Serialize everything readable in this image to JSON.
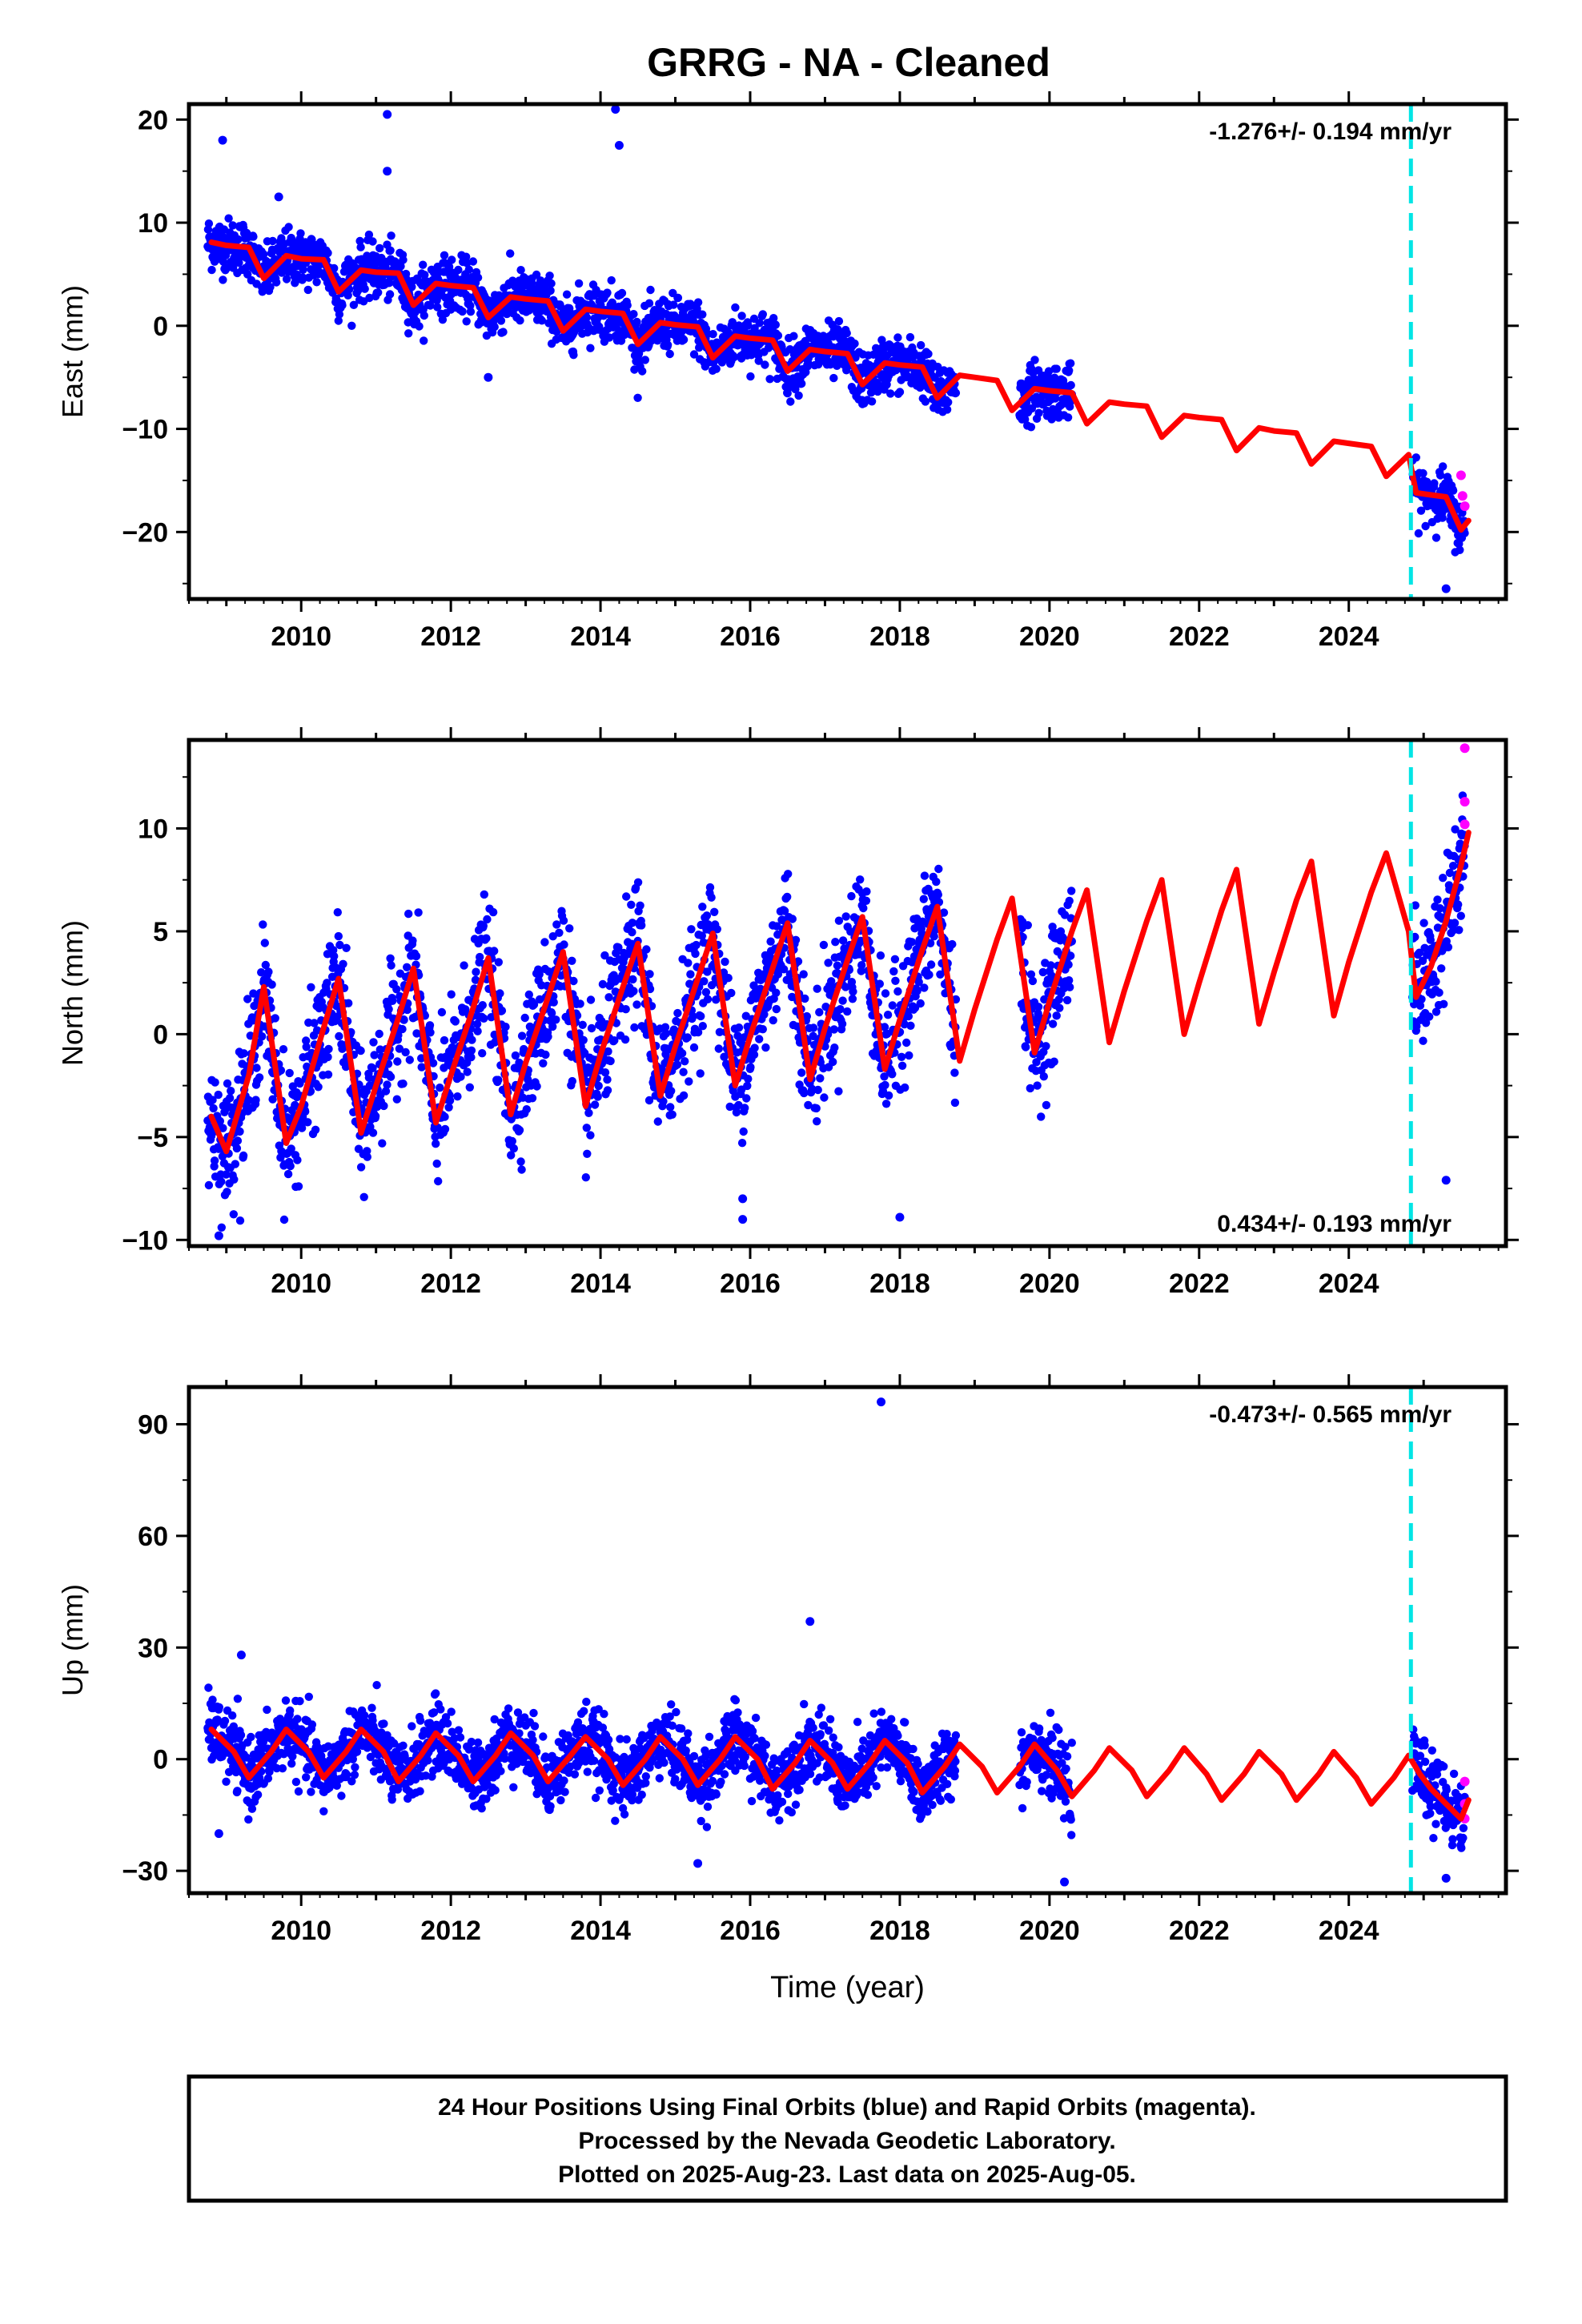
{
  "title": "GRRG  - NA - Cleaned",
  "colors": {
    "final_orbits": "#0000ff",
    "rapid_orbits": "#ff00ff",
    "model": "#ff0000",
    "offset_line": "#00e5e5",
    "frame": "#000000"
  },
  "footer": {
    "line1": "24 Hour Positions Using Final Orbits (blue) and Rapid Orbits (magenta).",
    "line2": "Processed by the Nevada Geodetic Laboratory.",
    "line3": "Plotted on 2025-Aug-23. Last data on 2025-Aug-05."
  },
  "chart_data": [
    {
      "type": "scatter",
      "component": "east",
      "ylabel": "East (mm)",
      "xlabel": "",
      "xlim": [
        2008.5,
        2026.1
      ],
      "ylim": [
        -26.5,
        21.5
      ],
      "xticks": [
        2010,
        2012,
        2014,
        2016,
        2018,
        2020,
        2022,
        2024
      ],
      "yticks": [
        -20,
        -10,
        0,
        10,
        20
      ],
      "rate_label": "-1.276+/- 0.194 mm/yr",
      "rate_position": "top-right",
      "offset_epoch": 2024.83,
      "grid": false,
      "model": {
        "x": [
          2008.8,
          2009.0,
          2009.3,
          2009.5,
          2009.8,
          2010.0,
          2010.3,
          2010.5,
          2010.8,
          2011.0,
          2011.3,
          2011.5,
          2011.8,
          2012.0,
          2012.3,
          2012.5,
          2012.8,
          2013.0,
          2013.3,
          2013.5,
          2013.8,
          2014.0,
          2014.3,
          2014.5,
          2014.8,
          2015.0,
          2015.3,
          2015.5,
          2015.8,
          2016.0,
          2016.3,
          2016.5,
          2016.8,
          2017.0,
          2017.3,
          2017.5,
          2017.8,
          2018.0,
          2018.3,
          2018.5,
          2018.8,
          2019.0,
          2019.3,
          2019.5,
          2019.8,
          2020.0,
          2020.3,
          2020.5,
          2020.8,
          2021.0,
          2021.3,
          2021.5,
          2021.8,
          2022.0,
          2022.3,
          2022.5,
          2022.8,
          2023.0,
          2023.3,
          2023.5,
          2023.8,
          2024.0,
          2024.3,
          2024.5,
          2024.8,
          2024.9,
          2025.1,
          2025.3,
          2025.5,
          2025.6
        ],
        "y": [
          8.1,
          7.8,
          7.6,
          4.6,
          6.8,
          6.5,
          6.4,
          3.3,
          5.4,
          5.2,
          5.1,
          2.0,
          4.1,
          3.9,
          3.7,
          0.8,
          2.8,
          2.6,
          2.4,
          -0.5,
          1.6,
          1.4,
          1.2,
          -1.8,
          0.3,
          0.1,
          -0.1,
          -3.1,
          -1.0,
          -1.2,
          -1.4,
          -4.4,
          -2.3,
          -2.5,
          -2.7,
          -5.7,
          -3.6,
          -3.8,
          -4.0,
          -7.0,
          -4.8,
          -5.0,
          -5.3,
          -8.2,
          -6.1,
          -6.3,
          -6.5,
          -9.5,
          -7.4,
          -7.6,
          -7.8,
          -10.8,
          -8.7,
          -8.9,
          -9.1,
          -12.1,
          -9.9,
          -10.2,
          -10.4,
          -13.4,
          -11.2,
          -11.4,
          -11.7,
          -14.6,
          -12.5,
          -16.2,
          -16.4,
          -16.6,
          -19.8,
          -18.9
        ]
      },
      "outliers": {
        "x": [
          2008.95,
          2009.7,
          2011.15,
          2011.15,
          2014.2,
          2014.25,
          2012.5,
          2025.3
        ],
        "y": [
          18.0,
          12.5,
          20.5,
          15.0,
          21.0,
          17.5,
          -5.0,
          -25.5
        ]
      },
      "rapid": {
        "x": [
          2025.5,
          2025.52,
          2025.55
        ],
        "y": [
          -14.5,
          -16.5,
          -17.5
        ]
      }
    },
    {
      "type": "scatter",
      "component": "north",
      "ylabel": "North (mm)",
      "xlabel": "",
      "xlim": [
        2008.5,
        2026.1
      ],
      "ylim": [
        -10.3,
        14.3
      ],
      "xticks": [
        2010,
        2012,
        2014,
        2016,
        2018,
        2020,
        2022,
        2024
      ],
      "yticks": [
        -10,
        -5,
        0,
        5,
        10
      ],
      "rate_label": "0.434+/- 0.193 mm/yr",
      "rate_position": "bottom-right",
      "offset_epoch": 2024.83,
      "grid": false,
      "model": {
        "x": [
          2008.8,
          2009.0,
          2009.3,
          2009.5,
          2009.8,
          2010.0,
          2010.3,
          2010.5,
          2010.8,
          2011.0,
          2011.3,
          2011.5,
          2011.8,
          2012.0,
          2012.3,
          2012.5,
          2012.8,
          2013.0,
          2013.3,
          2013.5,
          2013.8,
          2014.0,
          2014.3,
          2014.5,
          2014.8,
          2015.0,
          2015.3,
          2015.5,
          2015.8,
          2016.0,
          2016.3,
          2016.5,
          2016.8,
          2017.0,
          2017.3,
          2017.5,
          2017.8,
          2018.0,
          2018.3,
          2018.5,
          2018.8,
          2019.0,
          2019.3,
          2019.5,
          2019.8,
          2020.0,
          2020.3,
          2020.5,
          2020.8,
          2021.0,
          2021.3,
          2021.5,
          2021.8,
          2022.0,
          2022.3,
          2022.5,
          2022.8,
          2023.0,
          2023.3,
          2023.5,
          2023.8,
          2024.0,
          2024.3,
          2024.5,
          2024.8,
          2024.9,
          2025.1,
          2025.3,
          2025.5,
          2025.6
        ],
        "y": [
          -4.0,
          -5.7,
          -2.0,
          2.3,
          -5.3,
          -3.5,
          0.3,
          2.7,
          -4.8,
          -2.5,
          0.8,
          3.2,
          -4.3,
          -2.0,
          1.3,
          3.7,
          -3.9,
          -1.4,
          1.8,
          4.0,
          -3.5,
          -1.0,
          2.3,
          4.4,
          -3.0,
          -0.6,
          2.7,
          4.9,
          -2.5,
          -0.1,
          3.2,
          5.4,
          -2.2,
          0.3,
          3.6,
          5.7,
          -1.7,
          0.7,
          4.1,
          6.2,
          -1.3,
          1.2,
          4.6,
          6.6,
          -0.9,
          1.6,
          5.0,
          7.0,
          -0.4,
          2.1,
          5.5,
          7.5,
          0.0,
          2.5,
          6.0,
          8.0,
          0.5,
          3.0,
          6.5,
          8.4,
          0.9,
          3.5,
          6.9,
          8.8,
          5.0,
          1.8,
          3.3,
          5.5,
          8.2,
          9.8
        ]
      },
      "outliers": {
        "x": [
          2008.9,
          2015.9,
          2015.9,
          2018.0,
          2025.3
        ],
        "y": [
          -9.8,
          -9.0,
          -8.0,
          -8.9,
          -7.1
        ]
      },
      "rapid": {
        "x": [
          2025.55,
          2025.55,
          2025.55
        ],
        "y": [
          13.9,
          11.3,
          10.2
        ]
      }
    },
    {
      "type": "scatter",
      "component": "up",
      "ylabel": "Up (mm)",
      "xlabel": "Time (year)",
      "xlim": [
        2008.5,
        2026.1
      ],
      "ylim": [
        -36,
        100
      ],
      "xticks": [
        2010,
        2012,
        2014,
        2016,
        2018,
        2020,
        2022,
        2024
      ],
      "yticks": [
        -30,
        0,
        30,
        60,
        90
      ],
      "rate_label": "-0.473+/- 0.565 mm/yr",
      "rate_position": "top-right",
      "offset_epoch": 2024.83,
      "grid": false,
      "model": {
        "x": [
          2008.8,
          2009.1,
          2009.3,
          2009.6,
          2009.8,
          2010.1,
          2010.3,
          2010.6,
          2010.8,
          2011.1,
          2011.3,
          2011.6,
          2011.8,
          2012.1,
          2012.3,
          2012.6,
          2012.8,
          2013.1,
          2013.3,
          2013.6,
          2013.8,
          2014.1,
          2014.3,
          2014.6,
          2014.8,
          2015.1,
          2015.3,
          2015.6,
          2015.8,
          2016.1,
          2016.3,
          2016.6,
          2016.8,
          2017.1,
          2017.3,
          2017.6,
          2017.8,
          2018.1,
          2018.3,
          2018.6,
          2018.8,
          2019.1,
          2019.3,
          2019.6,
          2019.8,
          2020.1,
          2020.3,
          2020.6,
          2020.8,
          2021.1,
          2021.3,
          2021.6,
          2021.8,
          2022.1,
          2022.3,
          2022.6,
          2022.8,
          2023.1,
          2023.3,
          2023.6,
          2023.8,
          2024.1,
          2024.3,
          2024.6,
          2024.8,
          2024.95,
          2025.1,
          2025.3,
          2025.5,
          2025.6
        ],
        "y": [
          8,
          2,
          -5,
          2,
          8,
          2,
          -5,
          2,
          8,
          2,
          -6,
          1,
          7,
          1,
          -6,
          1,
          7,
          1,
          -6,
          1,
          6,
          0,
          -7,
          0,
          6,
          0,
          -7,
          0,
          6,
          0,
          -8,
          -1,
          5,
          -1,
          -8,
          -1,
          5,
          -1,
          -9,
          -2,
          4,
          -2,
          -9,
          -2,
          4,
          -3,
          -10,
          -3,
          3,
          -3,
          -10,
          -3,
          3,
          -4,
          -11,
          -4,
          2,
          -4,
          -11,
          -4,
          2,
          -5,
          -12,
          -5,
          1,
          -4,
          -8,
          -12,
          -16,
          -11
        ]
      },
      "outliers": {
        "x": [
          2009.2,
          2008.9,
          2016.8,
          2017.75,
          2015.3,
          2020.2,
          2025.3
        ],
        "y": [
          28,
          -20,
          37,
          96,
          -28,
          -33,
          -32
        ]
      },
      "rapid": {
        "x": [
          2025.55,
          2025.55,
          2025.55
        ],
        "y": [
          -6,
          -12,
          -16
        ]
      }
    }
  ]
}
